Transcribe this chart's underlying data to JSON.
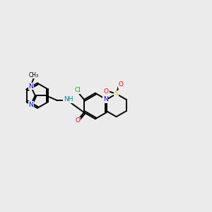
{
  "background_color": "#ebebeb",
  "bond_color": "#000000",
  "atom_colors": {
    "N": "#0000ff",
    "O": "#ff0000",
    "S": "#cccc00",
    "Cl": "#00bb00",
    "H": "#008888",
    "C": "#000000"
  },
  "figsize": [
    3.0,
    3.0
  ],
  "dpi": 100
}
